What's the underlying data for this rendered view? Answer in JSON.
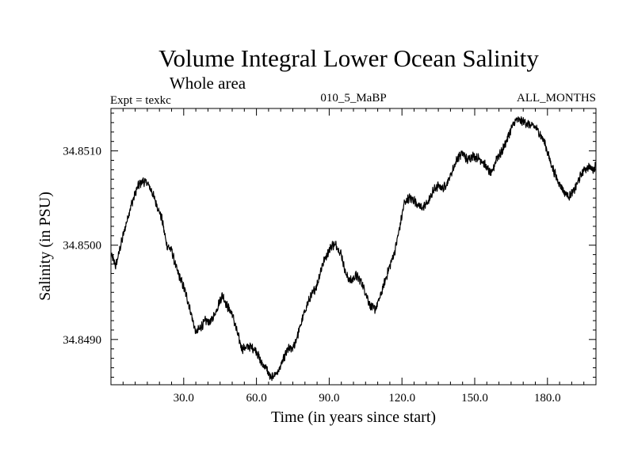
{
  "chart_data": {
    "type": "line",
    "title": "Volume Integral Lower Ocean Salinity",
    "subtitle": "Whole area",
    "header_left": "Expt = texkc",
    "header_center": "010_5_MaBP",
    "header_right": "ALL_MONTHS",
    "xlabel": "Time (in years since start)",
    "ylabel": "Salinity (in PSU)",
    "xlim": [
      0,
      200
    ],
    "ylim": [
      34.84852,
      34.85145
    ],
    "x_ticks": [
      30,
      60,
      90,
      120,
      150,
      180
    ],
    "x_tick_labels": [
      "30.0",
      "60.0",
      "90.0",
      "120.0",
      "150.0",
      "180.0"
    ],
    "y_ticks": [
      34.849,
      34.85,
      34.851
    ],
    "y_tick_labels": [
      "34.8490",
      "34.8500",
      "34.8510"
    ],
    "grid": false,
    "series": [
      {
        "name": "Salinity",
        "color": "#000000",
        "noise_amplitude": 4e-05,
        "x": [
          0,
          2,
          5,
          8,
          11,
          13,
          15,
          17,
          19,
          21,
          23,
          25,
          27,
          29,
          31,
          33,
          35,
          37,
          39,
          41,
          43,
          45,
          46,
          48,
          50,
          52,
          54,
          56,
          58,
          60,
          62,
          64,
          66,
          67,
          69,
          71,
          73,
          75,
          77,
          79,
          81,
          83,
          85,
          87,
          89,
          91,
          93,
          95,
          97,
          99,
          101,
          103,
          105,
          107,
          109,
          111,
          113,
          115,
          117,
          119,
          121,
          123,
          125,
          127,
          129,
          131,
          133,
          135,
          137,
          139,
          141,
          143,
          145,
          147,
          149,
          151,
          153,
          155,
          157,
          159,
          161,
          163,
          165,
          167,
          169,
          171,
          173,
          175,
          177,
          179,
          181,
          183,
          185,
          187,
          189,
          191,
          193,
          195,
          197,
          199,
          200
        ],
        "y": [
          34.8499,
          34.84978,
          34.8501,
          34.8504,
          34.85062,
          34.85068,
          34.85066,
          34.85056,
          34.85042,
          34.85028,
          34.85,
          34.84995,
          34.84975,
          34.84962,
          34.84948,
          34.84928,
          34.84907,
          34.84913,
          34.8492,
          34.84918,
          34.84928,
          34.84942,
          34.84947,
          34.84935,
          34.84927,
          34.84908,
          34.8489,
          34.84892,
          34.84892,
          34.84888,
          34.84875,
          34.8487,
          34.84858,
          34.84862,
          34.84866,
          34.84878,
          34.8489,
          34.8489,
          34.84905,
          34.84922,
          34.84938,
          34.84948,
          34.84958,
          34.84978,
          34.8499,
          34.85,
          34.85,
          34.8499,
          34.84968,
          34.84962,
          34.84968,
          34.84962,
          34.8495,
          34.84935,
          34.84932,
          34.84945,
          34.84962,
          34.84978,
          34.84993,
          34.85018,
          34.85045,
          34.8505,
          34.85048,
          34.85042,
          34.8504,
          34.85047,
          34.85058,
          34.85063,
          34.8506,
          34.85068,
          34.8508,
          34.85093,
          34.85098,
          34.8509,
          34.85095,
          34.85093,
          34.8509,
          34.85082,
          34.85075,
          34.85093,
          34.85098,
          34.8511,
          34.85123,
          34.85133,
          34.85132,
          34.8513,
          34.85127,
          34.85125,
          34.85118,
          34.85108,
          34.8509,
          34.85076,
          34.85065,
          34.85056,
          34.85052,
          34.85058,
          34.8507,
          34.8508,
          34.85083,
          34.8508,
          34.85085
        ]
      }
    ]
  }
}
